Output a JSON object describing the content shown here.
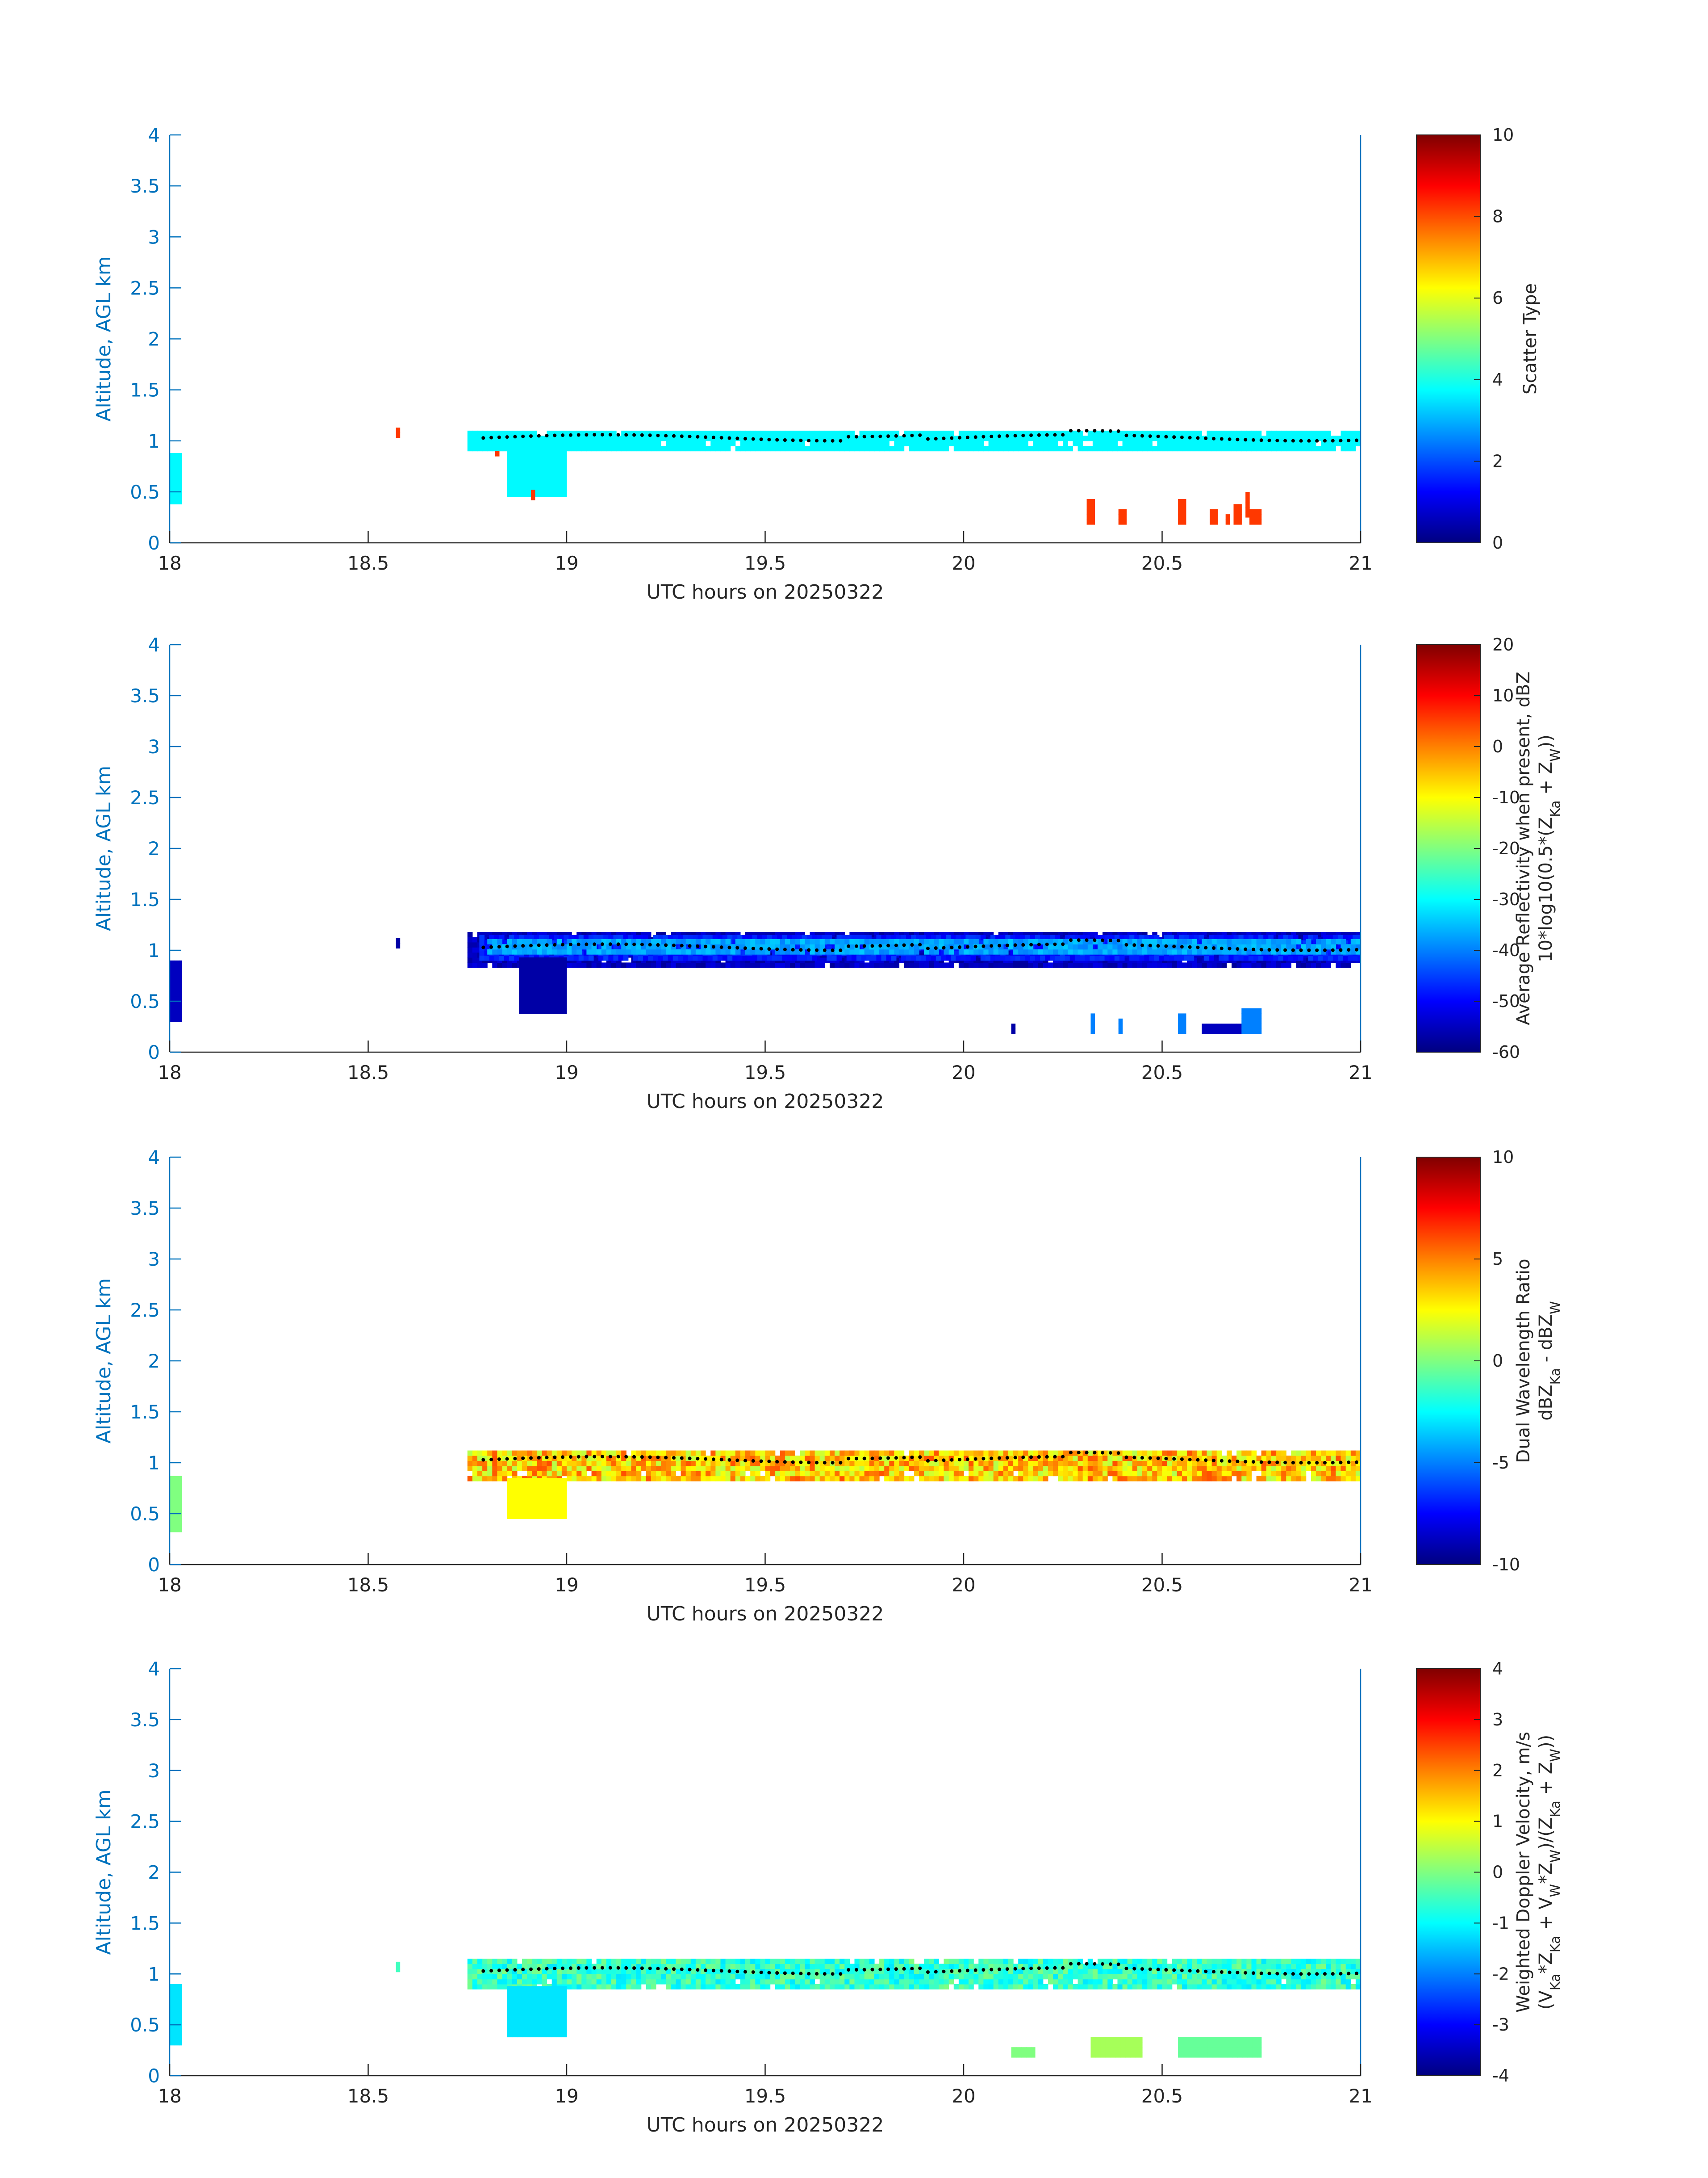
{
  "chart_data": [
    {
      "type": "heatmap",
      "variable": "scatter_type",
      "xlabel": "UTC hours on 20250322",
      "ylabel": "Altitude, AGL km",
      "xlim": [
        18,
        21
      ],
      "ylim": [
        0,
        4
      ],
      "xticks": [
        "18",
        "18.5",
        "19",
        "19.5",
        "20",
        "20.5",
        "21"
      ],
      "yticks": [
        "0",
        "0.5",
        "1",
        "1.5",
        "2",
        "2.5",
        "3",
        "3.5",
        "4"
      ],
      "colorbar": {
        "label_lines": [
          "Scatter Type"
        ],
        "min": 0,
        "max": 10,
        "ticks": [
          "0",
          "2",
          "4",
          "6",
          "8",
          "10"
        ],
        "colormap": "jet"
      },
      "regions": [
        {
          "x0": 18.0,
          "x1": 18.03,
          "y0": 0.38,
          "y1": 0.85,
          "v": 3.7
        },
        {
          "x0": 18.75,
          "x1": 21.0,
          "y0": 0.9,
          "y1": 1.1,
          "v": 3.7
        },
        {
          "x0": 18.85,
          "x1": 19.0,
          "y0": 0.45,
          "y1": 0.9,
          "v": 3.7
        },
        {
          "x0": 18.57,
          "x1": 18.58,
          "y0": 1.03,
          "y1": 1.12,
          "v": 8.2
        },
        {
          "x0": 18.82,
          "x1": 18.83,
          "y0": 0.85,
          "y1": 0.9,
          "v": 8.2
        },
        {
          "x0": 18.91,
          "x1": 18.92,
          "y0": 0.42,
          "y1": 0.52,
          "v": 8.2
        },
        {
          "x0": 20.31,
          "x1": 20.33,
          "y0": 0.18,
          "y1": 0.42,
          "v": 8.2
        },
        {
          "x0": 20.39,
          "x1": 20.41,
          "y0": 0.18,
          "y1": 0.3,
          "v": 8.2
        },
        {
          "x0": 20.54,
          "x1": 20.56,
          "y0": 0.18,
          "y1": 0.42,
          "v": 8.2
        },
        {
          "x0": 20.62,
          "x1": 20.64,
          "y0": 0.18,
          "y1": 0.3,
          "v": 8.2
        },
        {
          "x0": 20.66,
          "x1": 20.67,
          "y0": 0.18,
          "y1": 0.25,
          "v": 8.2
        },
        {
          "x0": 20.68,
          "x1": 20.7,
          "y0": 0.18,
          "y1": 0.35,
          "v": 8.2
        },
        {
          "x0": 20.71,
          "x1": 20.72,
          "y0": 0.25,
          "y1": 0.48,
          "v": 8.2
        },
        {
          "x0": 20.72,
          "x1": 20.75,
          "y0": 0.18,
          "y1": 0.3,
          "v": 8.2
        }
      ]
    },
    {
      "type": "heatmap",
      "variable": "average_reflectivity",
      "xlabel": "UTC hours on 20250322",
      "ylabel": "Altitude, AGL km",
      "xlim": [
        18,
        21
      ],
      "ylim": [
        0,
        4
      ],
      "xticks": [
        "18",
        "18.5",
        "19",
        "19.5",
        "20",
        "20.5",
        "21"
      ],
      "yticks": [
        "0",
        "0.5",
        "1",
        "1.5",
        "2",
        "2.5",
        "3",
        "3.5",
        "4"
      ],
      "colorbar": {
        "label_lines": [
          "Average Reflectivity when present, dBZ",
          "10*log10(0.5*(Z",
          "Ka",
          " + Z",
          "W",
          "))"
        ],
        "min": -60,
        "max": 20,
        "ticks": [
          "-60",
          "-50",
          "-40",
          "-30",
          "-20",
          "-10",
          "0",
          "10",
          "20"
        ],
        "colormap": "jet"
      },
      "regions": [
        {
          "x0": 18.0,
          "x1": 18.03,
          "y0": 0.3,
          "y1": 0.9,
          "v": -55
        },
        {
          "x0": 18.57,
          "x1": 18.58,
          "y0": 1.02,
          "y1": 1.12,
          "v": -57
        },
        {
          "x0": 18.75,
          "x1": 21.0,
          "y0": 0.83,
          "y1": 1.18,
          "v": -55
        },
        {
          "x0": 18.78,
          "x1": 21.0,
          "y0": 0.9,
          "y1": 1.12,
          "v": -48
        },
        {
          "x0": 18.8,
          "x1": 21.0,
          "y0": 0.96,
          "y1": 1.08,
          "v": -37
        },
        {
          "x0": 18.88,
          "x1": 19.0,
          "y0": 0.38,
          "y1": 0.9,
          "v": -57
        },
        {
          "x0": 20.12,
          "x1": 20.13,
          "y0": 0.18,
          "y1": 0.28,
          "v": -57
        },
        {
          "x0": 20.32,
          "x1": 20.33,
          "y0": 0.18,
          "y1": 0.38,
          "v": -40
        },
        {
          "x0": 20.39,
          "x1": 20.4,
          "y0": 0.18,
          "y1": 0.3,
          "v": -40
        },
        {
          "x0": 20.54,
          "x1": 20.56,
          "y0": 0.18,
          "y1": 0.38,
          "v": -40
        },
        {
          "x0": 20.6,
          "x1": 20.7,
          "y0": 0.18,
          "y1": 0.28,
          "v": -55
        },
        {
          "x0": 20.7,
          "x1": 20.75,
          "y0": 0.18,
          "y1": 0.4,
          "v": -40
        }
      ]
    },
    {
      "type": "heatmap",
      "variable": "dual_wavelength_ratio",
      "xlabel": "UTC hours on 20250322",
      "ylabel": "Altitude, AGL km",
      "xlim": [
        18,
        21
      ],
      "ylim": [
        0,
        4
      ],
      "xticks": [
        "18",
        "18.5",
        "19",
        "19.5",
        "20",
        "20.5",
        "21"
      ],
      "yticks": [
        "0",
        "0.5",
        "1",
        "1.5",
        "2",
        "2.5",
        "3",
        "3.5",
        "4"
      ],
      "colorbar": {
        "label_lines": [
          "Dual Wavelength Ratio",
          "dBZ",
          "Ka",
          " - dBZ",
          "W"
        ],
        "min": -10,
        "max": 10,
        "ticks": [
          "-10",
          "-5",
          "0",
          "5",
          "10"
        ],
        "colormap": "jet"
      },
      "regions": [
        {
          "x0": 18.0,
          "x1": 18.03,
          "y0": 0.32,
          "y1": 0.85,
          "v": 0
        },
        {
          "x0": 18.75,
          "x1": 21.0,
          "y0": 0.82,
          "y1": 1.12,
          "v": 3.5
        },
        {
          "x0": 18.85,
          "x1": 19.0,
          "y0": 0.45,
          "y1": 0.85,
          "v": 2.5
        }
      ]
    },
    {
      "type": "heatmap",
      "variable": "weighted_doppler_velocity",
      "xlabel": "UTC hours on 20250322",
      "ylabel": "Altitude, AGL km",
      "xlim": [
        18,
        21
      ],
      "ylim": [
        0,
        4
      ],
      "xticks": [
        "18",
        "18.5",
        "19",
        "19.5",
        "20",
        "20.5",
        "21"
      ],
      "yticks": [
        "0",
        "0.5",
        "1",
        "1.5",
        "2",
        "2.5",
        "3",
        "3.5",
        "4"
      ],
      "colorbar": {
        "label_lines": [
          "Weighted Doppler Velocity, m/s",
          "(V",
          "Ka",
          "*Z",
          "Ka",
          " + V",
          "W",
          "*Z",
          "W",
          ")/(Z",
          "Ka",
          " + Z",
          "W",
          "))"
        ],
        "min": -4,
        "max": 4,
        "ticks": [
          "-4",
          "-3",
          "-2",
          "-1",
          "0",
          "1",
          "2",
          "3",
          "4"
        ],
        "colormap": "jet"
      },
      "regions": [
        {
          "x0": 18.0,
          "x1": 18.03,
          "y0": 0.3,
          "y1": 0.88,
          "v": -1.2
        },
        {
          "x0": 18.57,
          "x1": 18.58,
          "y0": 1.02,
          "y1": 1.12,
          "v": -0.5
        },
        {
          "x0": 18.75,
          "x1": 21.0,
          "y0": 0.85,
          "y1": 1.15,
          "v": -0.6
        },
        {
          "x0": 18.85,
          "x1": 19.0,
          "y0": 0.38,
          "y1": 0.85,
          "v": -1.2
        },
        {
          "x0": 20.12,
          "x1": 20.18,
          "y0": 0.18,
          "y1": 0.28,
          "v": 0.0
        },
        {
          "x0": 20.32,
          "x1": 20.45,
          "y0": 0.18,
          "y1": 0.35,
          "v": 0.3
        },
        {
          "x0": 20.54,
          "x1": 20.75,
          "y0": 0.18,
          "y1": 0.38,
          "v": -0.2
        }
      ]
    }
  ]
}
